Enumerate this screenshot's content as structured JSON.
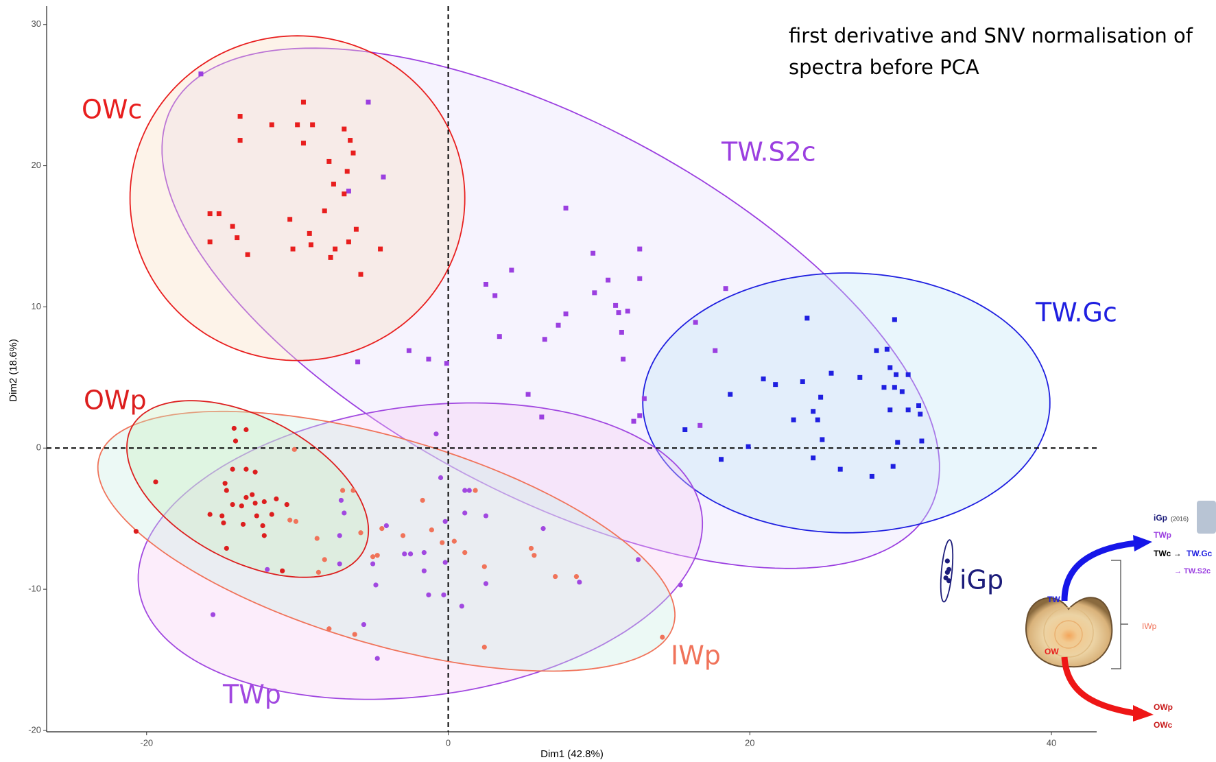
{
  "chart_data": {
    "type": "scatter",
    "xlabel": "Dim1 (42.8%)",
    "ylabel": "Dim2 (18.6%)",
    "xlim": [
      -26.63,
      43.0
    ],
    "ylim": [
      -20.1,
      31.3
    ],
    "xticks": [
      -20,
      0,
      20,
      40
    ],
    "yticks": [
      -20,
      -10,
      0,
      10,
      20,
      30
    ],
    "grid": false,
    "reference_lines": {
      "x": 0,
      "y": 0
    },
    "annotation": [
      "first derivative and SNV normalisation of",
      "spectra before PCA"
    ],
    "series": [
      {
        "name": "TW.S2c",
        "color": "#9b3fe0",
        "marker": "square",
        "ellipse": {
          "center": [
            6.8,
            9.9
          ],
          "axes": [
            28.9,
            13
          ],
          "angle": -30.4,
          "fill": "#e6dcfb"
        },
        "x": [
          -16.4,
          -5.3,
          -4.3,
          -6.6,
          7.8,
          9.6,
          12.7,
          4.2,
          2.5,
          3.1,
          10.6,
          12.7,
          9.7,
          11.1,
          11.3,
          11.9,
          7.8,
          7.3,
          6.4,
          3.4,
          11.5,
          18.4,
          16.4,
          17.7,
          11.6,
          -2.6,
          -1.3,
          -0.1,
          -6.0,
          5.3,
          13.0,
          12.7,
          12.3,
          6.2,
          16.7
        ],
        "y": [
          26.5,
          24.5,
          19.2,
          18.2,
          17.0,
          13.8,
          14.1,
          12.6,
          11.6,
          10.8,
          11.9,
          12.0,
          11.0,
          10.1,
          9.6,
          9.7,
          9.5,
          8.7,
          7.7,
          7.9,
          8.2,
          11.3,
          8.9,
          6.9,
          6.3,
          6.9,
          6.3,
          6.0,
          6.1,
          3.8,
          3.5,
          2.3,
          1.9,
          2.2,
          1.6
        ]
      },
      {
        "name": "OWc",
        "color": "#e81e1e",
        "marker": "square",
        "ellipse": {
          "center": [
            -10.0,
            17.7
          ],
          "axes": [
            11.1,
            11.5
          ],
          "angle": 0,
          "fill": "#f8dcc0"
        },
        "x": [
          -13.8,
          -13.8,
          -11.7,
          -10.0,
          -9.6,
          -9.0,
          -9.6,
          -6.9,
          -6.5,
          -6.3,
          -7.9,
          -6.7,
          -7.6,
          -6.9,
          -8.2,
          -15.8,
          -15.2,
          -14.3,
          -14.0,
          -15.8,
          -13.3,
          -10.5,
          -9.2,
          -9.1,
          -10.3,
          -7.8,
          -7.5,
          -6.6,
          -6.1,
          -4.5,
          -5.8
        ],
        "y": [
          23.5,
          21.8,
          22.9,
          22.9,
          24.5,
          22.9,
          21.6,
          22.6,
          21.8,
          20.9,
          20.3,
          19.6,
          18.7,
          18.0,
          16.8,
          16.6,
          16.6,
          15.7,
          14.9,
          14.6,
          13.7,
          16.2,
          15.2,
          14.4,
          14.1,
          13.5,
          14.1,
          14.6,
          15.5,
          14.1,
          12.3
        ]
      },
      {
        "name": "TW.Gc",
        "color": "#1f1fe0",
        "marker": "square",
        "ellipse": {
          "center": [
            26.4,
            3.2
          ],
          "axes": [
            13.5,
            9.2
          ],
          "angle": 0,
          "fill": "#bfe6f5"
        },
        "x": [
          23.8,
          29.6,
          28.4,
          29.1,
          20.9,
          21.7,
          23.5,
          25.4,
          27.3,
          29.3,
          29.7,
          30.5,
          28.9,
          29.6,
          30.1,
          18.7,
          24.7,
          24.2,
          24.5,
          22.9,
          29.3,
          30.5,
          31.2,
          31.3,
          15.7,
          24.8,
          29.8,
          31.4,
          19.9,
          18.1,
          24.2,
          26.0,
          28.1,
          29.5
        ],
        "y": [
          9.2,
          9.1,
          6.9,
          7.0,
          4.9,
          4.5,
          4.7,
          5.3,
          5.0,
          5.7,
          5.2,
          5.2,
          4.3,
          4.3,
          4.0,
          3.8,
          3.6,
          2.6,
          2.0,
          2.0,
          2.7,
          2.7,
          3.0,
          2.4,
          1.3,
          0.6,
          0.4,
          0.5,
          0.1,
          -0.8,
          -0.7,
          -1.5,
          -2.0,
          -1.3
        ]
      },
      {
        "name": "TWp",
        "color": "#a148e0",
        "marker": "circle",
        "ellipse": {
          "center": [
            -1.85,
            -7.3
          ],
          "axes": [
            18.85,
            10.24
          ],
          "angle": 8.4,
          "fill": "#f7ccf4"
        },
        "x": [
          -15.6,
          -12.0,
          -7.1,
          -6.9,
          -7.2,
          -7.2,
          -4.1,
          -2.9,
          -2.5,
          -1.6,
          -1.6,
          -0.8,
          -0.5,
          -0.2,
          -0.2,
          -0.3,
          1.1,
          1.4,
          1.1,
          2.5,
          2.5,
          0.9,
          -1.3,
          -5.0,
          -4.8,
          -5.6,
          -4.7,
          6.3,
          8.7,
          12.6,
          15.4
        ],
        "y": [
          -11.8,
          -8.6,
          -3.7,
          -4.6,
          -6.2,
          -8.2,
          -5.5,
          -7.5,
          -7.5,
          -7.4,
          -8.7,
          1.0,
          -2.1,
          -5.2,
          -8.1,
          -10.4,
          -3.0,
          -3.0,
          -4.6,
          -4.8,
          -9.6,
          -11.2,
          -10.4,
          -8.2,
          -9.7,
          -12.5,
          -14.9,
          -5.7,
          -9.5,
          -7.9,
          -9.7
        ]
      },
      {
        "name": "IWp",
        "color": "#f0735a",
        "marker": "circle",
        "ellipse": {
          "center": [
            -4.1,
            -6.6
          ],
          "axes": [
            19.95,
            7.26
          ],
          "angle": -17.7,
          "fill": "#c8eee2"
        },
        "x": [
          -10.2,
          -10.5,
          -10.1,
          -8.7,
          -8.2,
          -8.6,
          -7.0,
          -6.3,
          -5.8,
          -5.0,
          -4.7,
          -4.4,
          -3.0,
          -1.7,
          -1.1,
          -0.4,
          0.4,
          1.1,
          2.4,
          5.5,
          5.7,
          7.1,
          8.5,
          -7.9,
          -6.2,
          2.4,
          14.2,
          1.8
        ],
        "y": [
          -0.1,
          -5.1,
          -5.2,
          -6.4,
          -7.9,
          -8.8,
          -3.0,
          -3.0,
          -6.0,
          -7.7,
          -7.6,
          -5.7,
          -6.2,
          -3.7,
          -5.8,
          -6.7,
          -6.6,
          -7.4,
          -8.4,
          -7.1,
          -7.6,
          -9.1,
          -9.1,
          -12.8,
          -13.2,
          -14.1,
          -13.4,
          -3.0
        ]
      },
      {
        "name": "OWp",
        "color": "#dc1e1e",
        "marker": "circle",
        "ellipse": {
          "center": [
            -13.3,
            -2.9
          ],
          "axes": [
            8.85,
            5.0
          ],
          "angle": -31,
          "fill": "#c8eec0"
        },
        "x": [
          -14.2,
          -13.4,
          -14.1,
          -19.4,
          -20.7,
          -14.3,
          -13.4,
          -12.8,
          -14.8,
          -14.7,
          -13.4,
          -13.7,
          -14.3,
          -12.8,
          -12.2,
          -11.4,
          -10.7,
          -12.7,
          -15.0,
          -15.8,
          -14.9,
          -13.6,
          -11.7,
          -12.2,
          -12.3,
          -14.7,
          -11.0,
          -13.0
        ],
        "y": [
          1.4,
          1.3,
          0.5,
          -2.4,
          -5.9,
          -1.5,
          -1.5,
          -1.7,
          -2.5,
          -3.0,
          -3.5,
          -4.1,
          -4.0,
          -3.9,
          -3.8,
          -3.6,
          -4.0,
          -4.8,
          -4.8,
          -4.7,
          -5.3,
          -5.4,
          -4.7,
          -6.2,
          -5.5,
          -7.1,
          -8.7,
          -3.3
        ]
      },
      {
        "name": "iGp",
        "color": "#1c1c7a",
        "marker": "circle",
        "ellipse": {
          "center": [
            33.06,
            -8.7
          ],
          "axes": [
            2.2,
            0.35
          ],
          "angle": 85,
          "fill": "#ffffff"
        },
        "x": [
          33.1,
          33.2,
          33.0,
          33.2,
          33.1
        ],
        "y": [
          -8.0,
          -8.6,
          -9.2,
          -9.4,
          -8.8
        ]
      }
    ],
    "inset": {
      "igp": "iGp",
      "year": "(2016)",
      "twp": "TWp",
      "twc": "TWc →",
      "twgc": "TW.Gc",
      "tws2c": "→ TW.S2c",
      "tw": "TW",
      "iwp": "IWp",
      "ow": "OW",
      "owp": "OWp",
      "owc": "OWc"
    }
  }
}
